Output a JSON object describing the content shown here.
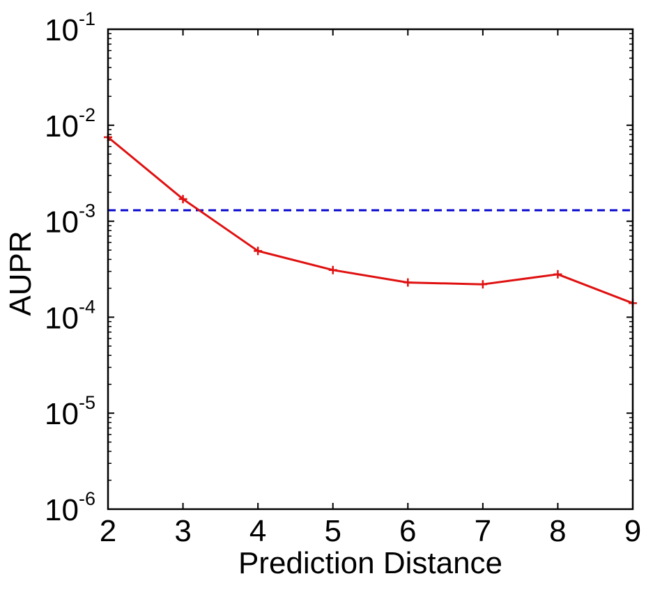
{
  "chart_data": {
    "type": "line",
    "title": "",
    "xlabel": "Prediction Distance",
    "ylabel": "AUPR",
    "xlim": [
      2,
      9
    ],
    "ylim": [
      1e-06,
      0.1
    ],
    "yscale": "log",
    "x_ticks": [
      "2",
      "3",
      "4",
      "5",
      "6",
      "7",
      "8",
      "9"
    ],
    "y_ticks": [
      {
        "value": 1e-06,
        "base": "10",
        "exponent": "-6"
      },
      {
        "value": 1e-05,
        "base": "10",
        "exponent": "-5"
      },
      {
        "value": 0.0001,
        "base": "10",
        "exponent": "-4"
      },
      {
        "value": 0.001,
        "base": "10",
        "exponent": "-3"
      },
      {
        "value": 0.01,
        "base": "10",
        "exponent": "-2"
      },
      {
        "value": 0.1,
        "base": "10",
        "exponent": "-1"
      }
    ],
    "grid": false,
    "legend": "none",
    "series": [
      {
        "color": "#e01010",
        "line_style": "solid",
        "marker": "plus",
        "x": [
          2,
          3,
          4,
          5,
          6,
          7,
          8,
          9
        ],
        "y": [
          0.0075,
          0.0017,
          0.00049,
          0.00031,
          0.00023,
          0.00022,
          0.00028,
          0.00014
        ]
      }
    ],
    "reference_lines": [
      {
        "orientation": "horizontal",
        "y": 0.0013,
        "color": "#0a0ad0",
        "line_style": "dashed"
      }
    ]
  }
}
